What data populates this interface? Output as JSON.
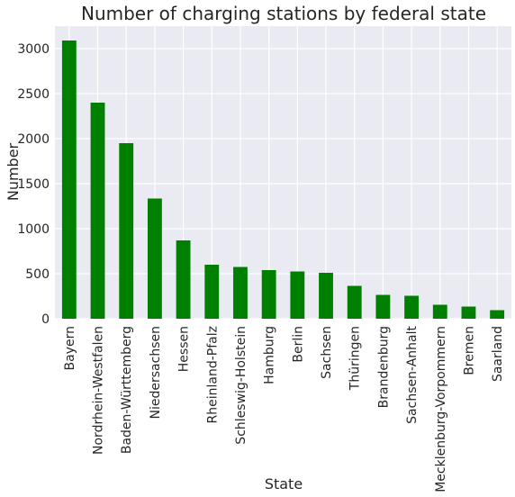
{
  "chart_data": {
    "type": "bar",
    "title": "Number of charging stations by federal state",
    "xlabel": "State",
    "ylabel": "Number",
    "categories": [
      "Bayern",
      "Nordrhein-Westfalen",
      "Baden-Württemberg",
      "Niedersachsen",
      "Hessen",
      "Rheinland-Pfalz",
      "Schleswig-Holstein",
      "Hamburg",
      "Berlin",
      "Sachsen",
      "Thüringen",
      "Brandenburg",
      "Sachsen-Anhalt",
      "Mecklenburg-Vorpommern",
      "Bremen",
      "Saarland"
    ],
    "values": [
      3090,
      2400,
      1950,
      1335,
      870,
      600,
      575,
      540,
      525,
      510,
      365,
      265,
      255,
      155,
      135,
      95
    ],
    "ylim": [
      0,
      3250
    ],
    "yticks": [
      0,
      500,
      1000,
      1500,
      2000,
      2500,
      3000
    ],
    "grid": true,
    "bar_color": "#008000",
    "background_color": "#EAEAF2",
    "grid_color": "#FFFFFF"
  }
}
